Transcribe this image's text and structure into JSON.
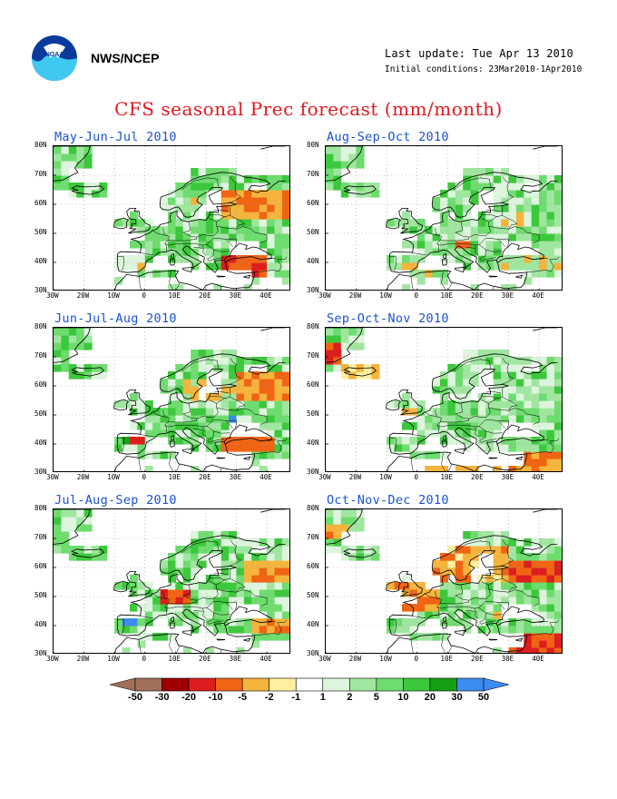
{
  "header": {
    "agency": "NWS/NCEP",
    "last_update": "Last update: Tue Apr 13 2010",
    "initial_conditions": "Initial conditions: 23Mar2010-1Apr2010",
    "title": "CFS seasonal Prec forecast (mm/month)",
    "logo_icon": "noaa-logo-icon"
  },
  "panels": [
    {
      "title": "May-Jun-Jul 2010"
    },
    {
      "title": "Aug-Sep-Oct 2010"
    },
    {
      "title": "Jun-Jul-Aug 2010"
    },
    {
      "title": "Sep-Oct-Nov 2010"
    },
    {
      "title": "Jul-Aug-Sep 2010"
    },
    {
      "title": "Oct-Nov-Dec 2010"
    }
  ],
  "axes": {
    "lat_ticks": [
      "80N",
      "70N",
      "60N",
      "50N",
      "40N",
      "30N"
    ],
    "lon_ticks": [
      "30W",
      "20W",
      "10W",
      "0",
      "10E",
      "20E",
      "30E",
      "40E"
    ]
  },
  "legend": {
    "labels": [
      "-50",
      "-30",
      "-20",
      "-10",
      "-5",
      "-2",
      "-1",
      "1",
      "2",
      "5",
      "10",
      "20",
      "30",
      "50"
    ],
    "colors": [
      "#a0705a",
      "#a00000",
      "#dc1e1e",
      "#f06414",
      "#f5b43c",
      "#fff0a0",
      "#ffffff",
      "#dcf5dc",
      "#a0e6a0",
      "#6edc6e",
      "#3cc83c",
      "#14a014",
      "#3c8cf0"
    ]
  }
}
